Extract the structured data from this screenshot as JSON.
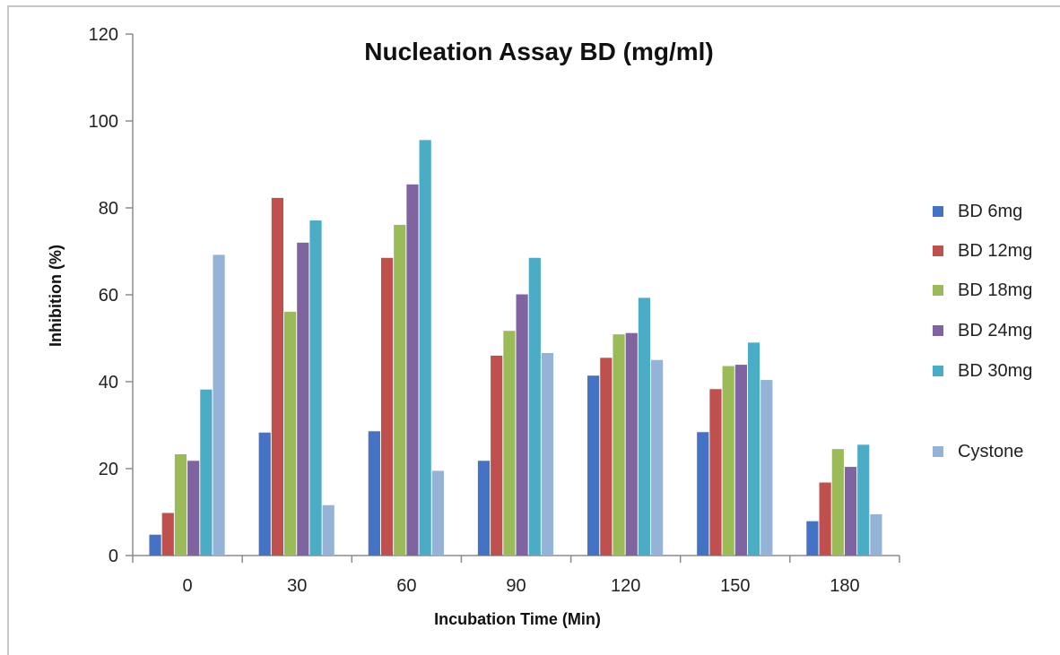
{
  "chart_data": {
    "type": "bar",
    "title": "Nucleation Assay BD (mg/ml)",
    "xlabel": "Incubation Time (Min)",
    "ylabel": "Inhibition (%)",
    "ylim": [
      0,
      120
    ],
    "yticks": [
      0,
      20,
      40,
      60,
      80,
      100,
      120
    ],
    "categories": [
      "0",
      "30",
      "60",
      "90",
      "120",
      "150",
      "180"
    ],
    "legend_position": "right",
    "grid": false,
    "series": [
      {
        "name": "BD 6mg",
        "color": "#4472c4",
        "values": [
          4.8,
          28.3,
          28.6,
          21.8,
          41.4,
          28.4,
          7.9
        ]
      },
      {
        "name": "BD 12mg",
        "color": "#c0504d",
        "values": [
          9.8,
          82.3,
          68.5,
          46.0,
          45.5,
          38.3,
          16.8
        ]
      },
      {
        "name": "BD 18mg",
        "color": "#9bbb59",
        "values": [
          23.3,
          56.1,
          76.1,
          51.7,
          50.9,
          43.6,
          24.5
        ]
      },
      {
        "name": "BD 24mg",
        "color": "#8064a2",
        "values": [
          21.8,
          72.0,
          85.4,
          60.1,
          51.2,
          43.9,
          20.4
        ]
      },
      {
        "name": "BD 30mg",
        "color": "#4bacc6",
        "values": [
          38.2,
          77.1,
          95.6,
          68.5,
          59.3,
          49.0,
          25.5
        ]
      },
      {
        "name": "Cystone",
        "color": "#95b3d7",
        "values": [
          69.2,
          11.6,
          19.5,
          46.6,
          45.0,
          40.4,
          9.5
        ]
      }
    ]
  }
}
